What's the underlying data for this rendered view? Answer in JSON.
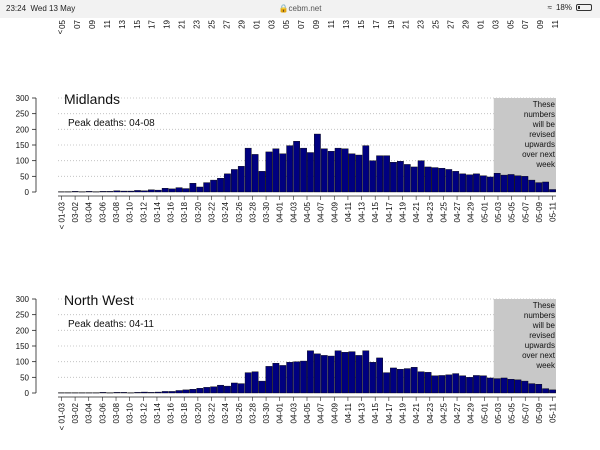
{
  "status_bar": {
    "time": "23:24",
    "date": "Wed 13 May",
    "url": "cebm.net",
    "battery": "18%",
    "battery_level": 0.18
  },
  "top_fragment": {
    "tick_labels": [
      "05",
      "07",
      "09",
      "11",
      "13",
      "15",
      "17",
      "19",
      "21",
      "23",
      "25",
      "27",
      "29",
      "01",
      "03",
      "05",
      "07",
      "09",
      "11",
      "13",
      "15",
      "17",
      "19",
      "21",
      "23",
      "25",
      "27",
      "29",
      "01",
      "03",
      "05",
      "07",
      "09",
      "11"
    ],
    "mark": "<"
  },
  "chart_data": [
    {
      "type": "bar",
      "title": "Midlands",
      "annotation": "Peak deaths: 04-08",
      "shaded_note": "These\nnumbers\nwill be\nrevised\nupwards\nover next\nweek",
      "bar_color": "#000080",
      "ylim": [
        0,
        300
      ],
      "yticks": [
        0,
        50,
        100,
        150,
        200,
        250,
        300
      ],
      "grid": true,
      "tick_labels": [
        "< 01-03",
        "03-02",
        "03-04",
        "03-06",
        "03-08",
        "03-10",
        "03-12",
        "03-14",
        "03-16",
        "03-18",
        "03-20",
        "03-22",
        "03-24",
        "03-26",
        "03-28",
        "03-30",
        "04-01",
        "04-03",
        "04-05",
        "04-07",
        "04-09",
        "04-11",
        "04-13",
        "04-15",
        "04-17",
        "04-19",
        "04-21",
        "04-23",
        "04-25",
        "04-27",
        "04-29",
        "05-01",
        "05-03",
        "05-05",
        "05-07",
        "05-09",
        "05-11"
      ],
      "values": [
        1,
        1,
        2,
        1,
        2,
        1,
        2,
        2,
        4,
        3,
        3,
        5,
        4,
        7,
        6,
        12,
        10,
        14,
        11,
        28,
        16,
        30,
        38,
        44,
        58,
        72,
        82,
        140,
        120,
        66,
        128,
        138,
        122,
        148,
        162,
        140,
        126,
        185,
        138,
        130,
        140,
        138,
        122,
        118,
        148,
        100,
        116,
        116,
        95,
        98,
        88,
        80,
        100,
        80,
        78,
        76,
        72,
        66,
        58,
        55,
        58,
        52,
        48,
        60,
        54,
        56,
        52,
        50,
        38,
        30,
        32,
        8
      ]
    },
    {
      "type": "bar",
      "title": "North West",
      "annotation": "Peak deaths: 04-11",
      "shaded_note": "These\nnumbers\nwill be\nrevised\nupwards\nover next\nweek",
      "bar_color": "#000080",
      "ylim": [
        0,
        300
      ],
      "yticks": [
        0,
        50,
        100,
        150,
        200,
        250,
        300
      ],
      "grid": true,
      "tick_labels": [
        "< 01-03",
        "03-02",
        "03-04",
        "03-06",
        "03-08",
        "03-10",
        "03-12",
        "03-14",
        "03-16",
        "03-18",
        "03-20",
        "03-22",
        "03-24",
        "03-26",
        "03-28",
        "03-30",
        "04-01",
        "04-03",
        "04-05",
        "04-07",
        "04-09",
        "04-11",
        "04-13",
        "04-15",
        "04-17",
        "04-19",
        "04-21",
        "04-23",
        "04-25",
        "04-27",
        "04-29",
        "05-01",
        "05-03",
        "05-05",
        "05-07",
        "05-09",
        "05-11"
      ],
      "values": [
        1,
        1,
        1,
        1,
        1,
        1,
        2,
        1,
        2,
        2,
        1,
        2,
        3,
        2,
        3,
        5,
        5,
        8,
        10,
        12,
        15,
        18,
        20,
        25,
        22,
        32,
        30,
        65,
        68,
        38,
        85,
        95,
        88,
        98,
        100,
        102,
        135,
        125,
        120,
        118,
        135,
        130,
        132,
        120,
        135,
        98,
        112,
        65,
        80,
        76,
        78,
        82,
        68,
        66,
        55,
        56,
        58,
        62,
        55,
        50,
        56,
        55,
        48,
        46,
        48,
        44,
        42,
        38,
        30,
        28,
        14,
        10
      ]
    }
  ]
}
